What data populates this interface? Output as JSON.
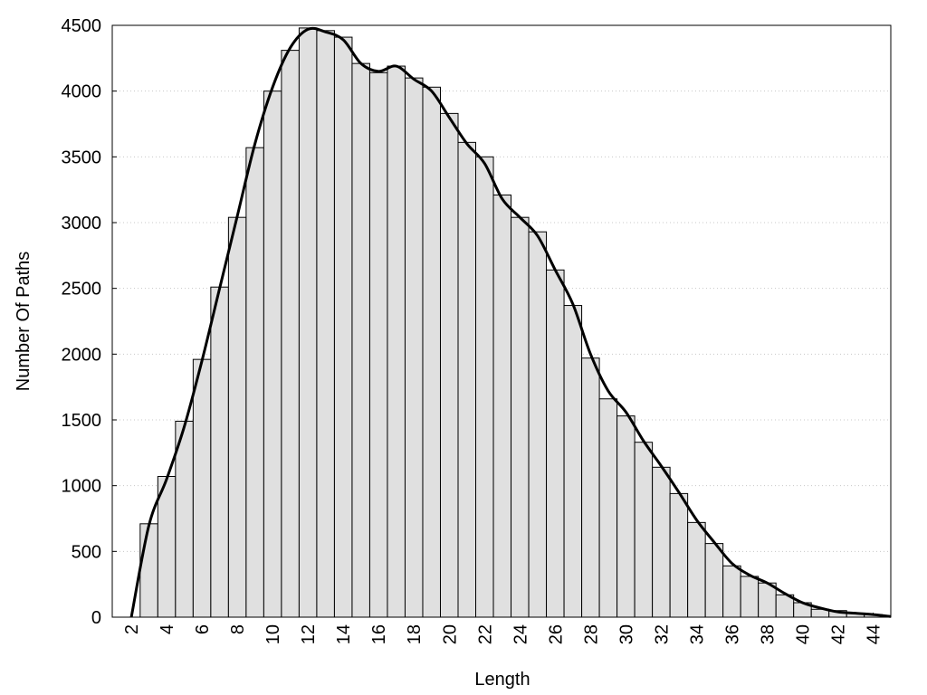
{
  "chart_data": {
    "type": "histogram",
    "x_label": "Length",
    "y_label": "Number Of Paths",
    "bins": [
      2.5,
      3.5,
      4.5,
      5.5,
      6.5,
      7.5,
      8.5,
      9.5,
      10.5,
      11.5,
      12.5,
      13.5,
      14.5,
      15.5,
      16.5,
      17.5,
      18.5,
      19.5,
      20.5,
      21.5,
      22.5,
      23.5,
      24.5,
      25.5,
      26.5,
      27.5,
      28.5,
      29.5,
      30.5,
      31.5,
      32.5,
      33.5,
      34.5,
      35.5,
      36.5,
      37.5,
      38.5,
      39.5,
      40.5,
      41.5,
      42.5,
      43.5,
      44.5
    ],
    "counts": [
      710,
      1070,
      1490,
      1960,
      2510,
      3040,
      3570,
      4000,
      4310,
      4480,
      4460,
      4410,
      4210,
      4140,
      4190,
      4100,
      4030,
      3830,
      3610,
      3500,
      3210,
      3040,
      2930,
      2640,
      2370,
      1970,
      1660,
      1530,
      1330,
      1140,
      940,
      720,
      560,
      390,
      310,
      260,
      170,
      110,
      60,
      50,
      30,
      20
    ],
    "color": "#e0e0e0",
    "edge_color": "#000000",
    "line": {
      "color": "#000000",
      "x": [
        2,
        3,
        4,
        5,
        6,
        7,
        8,
        9,
        10,
        11,
        12,
        13,
        14,
        15,
        16,
        17,
        18,
        19,
        20,
        21,
        22,
        23,
        24,
        25,
        26,
        27,
        28,
        29,
        30,
        31,
        32,
        33,
        34,
        35,
        36,
        37,
        38,
        39,
        40,
        41,
        42,
        43,
        44,
        45
      ],
      "values": [
        0,
        700,
        1050,
        1450,
        1950,
        2500,
        3050,
        3600,
        4030,
        4330,
        4470,
        4450,
        4390,
        4210,
        4150,
        4190,
        4090,
        4000,
        3800,
        3600,
        3450,
        3180,
        3040,
        2900,
        2640,
        2380,
        2000,
        1720,
        1560,
        1340,
        1150,
        950,
        740,
        570,
        410,
        320,
        260,
        180,
        110,
        70,
        40,
        30,
        20,
        5
      ]
    },
    "xlim": [
      0.92,
      45
    ],
    "ylim": [
      0,
      4500
    ],
    "xticks": [
      2,
      4,
      6,
      8,
      10,
      12,
      14,
      16,
      18,
      20,
      22,
      24,
      26,
      28,
      30,
      32,
      34,
      36,
      38,
      40,
      42,
      44
    ],
    "yticks": [
      0,
      500,
      1000,
      1500,
      2000,
      2500,
      3000,
      3500,
      4000,
      4500
    ],
    "grid": true
  }
}
